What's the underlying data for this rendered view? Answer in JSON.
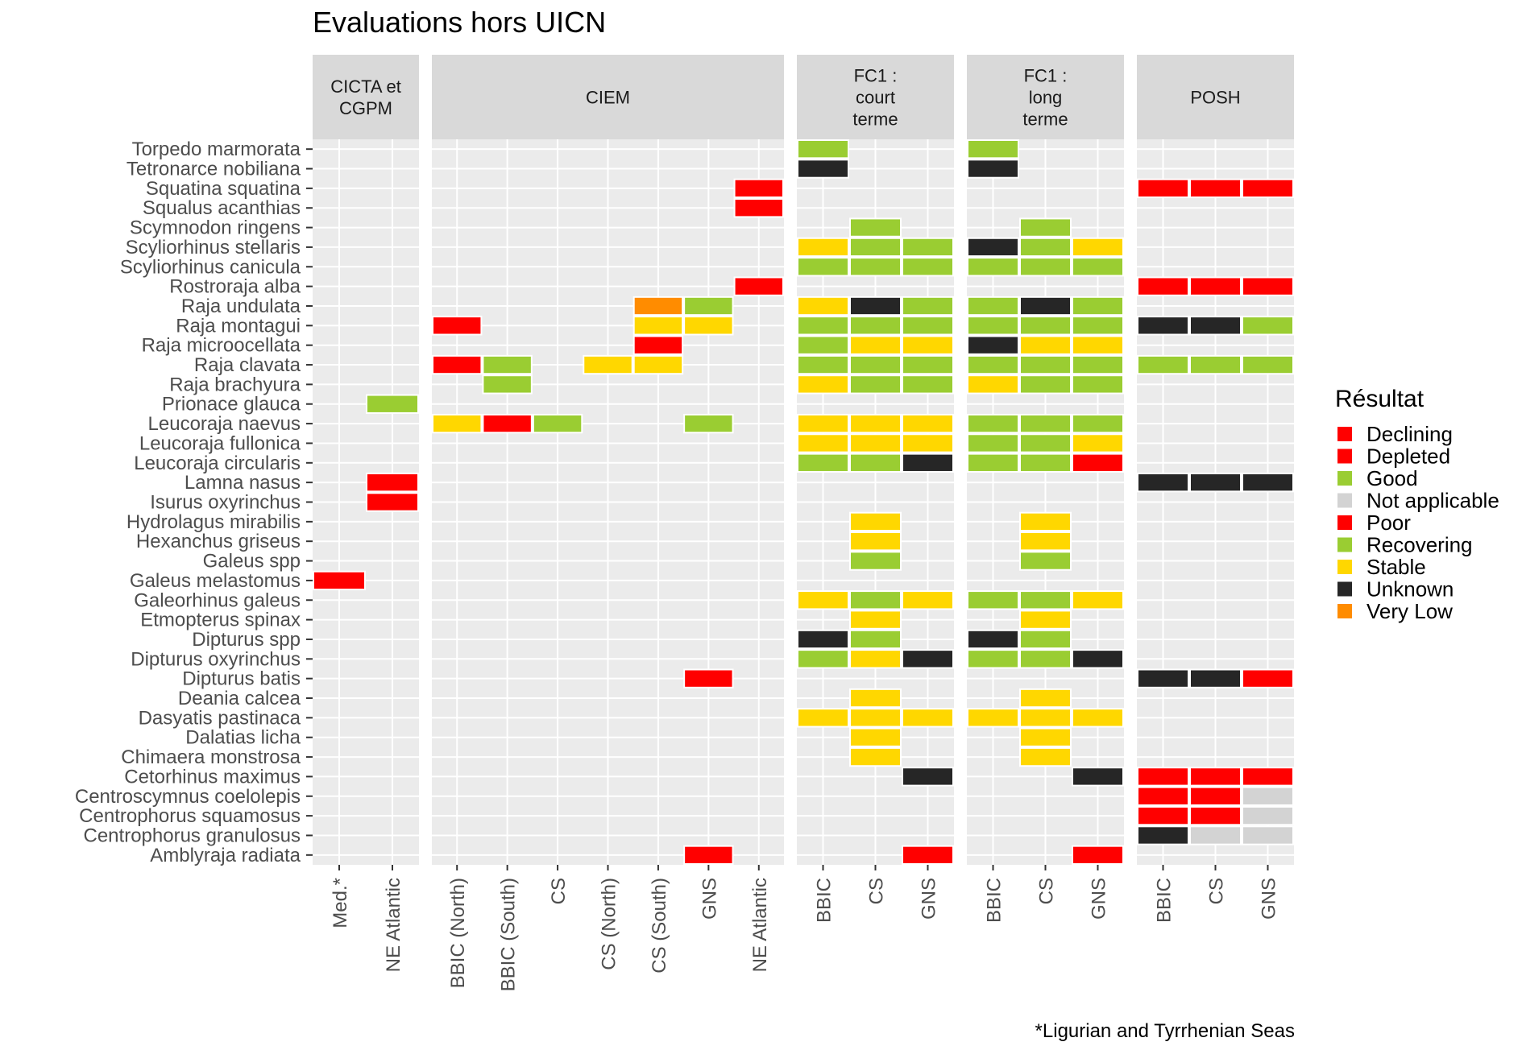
{
  "chart_data": {
    "type": "heatmap",
    "title": "Evaluations hors UICN",
    "caption": "*Ligurian and Tyrrhenian Seas",
    "legend": {
      "title": "Résultat",
      "placement": "right",
      "entries": [
        {
          "label": "Declining",
          "color": "#ff0000"
        },
        {
          "label": "Depleted",
          "color": "#ff0000"
        },
        {
          "label": "Good",
          "color": "#9acd32"
        },
        {
          "label": "Not applicable",
          "color": "#d3d3d3"
        },
        {
          "label": "Poor",
          "color": "#ff0000"
        },
        {
          "label": "Recovering",
          "color": "#9acd32"
        },
        {
          "label": "Stable",
          "color": "#ffd700"
        },
        {
          "label": "Unknown",
          "color": "#262626"
        },
        {
          "label": "Very Low",
          "color": "#ff8c00"
        }
      ]
    },
    "species": [
      "Torpedo marmorata",
      "Tetronarce nobiliana",
      "Squatina squatina",
      "Squalus acanthias",
      "Scymnodon ringens",
      "Scyliorhinus stellaris",
      "Scyliorhinus canicula",
      "Rostroraja alba",
      "Raja undulata",
      "Raja montagui",
      "Raja microocellata",
      "Raja clavata",
      "Raja brachyura",
      "Prionace glauca",
      "Leucoraja naevus",
      "Leucoraja fullonica",
      "Leucoraja circularis",
      "Lamna nasus",
      "Isurus oxyrinchus",
      "Hydrolagus mirabilis",
      "Hexanchus griseus",
      "Galeus spp",
      "Galeus melastomus",
      "Galeorhinus galeus",
      "Etmopterus spinax",
      "Dipturus spp",
      "Dipturus oxyrinchus",
      "Dipturus batis",
      "Deania calcea",
      "Dasyatis pastinaca",
      "Dalatias licha",
      "Chimaera monstrosa",
      "Cetorhinus maximus",
      "Centroscymnus coelolepis",
      "Centrophorus squamosus",
      "Centrophorus granulosus",
      "Amblyraja radiata"
    ],
    "panels": [
      {
        "strip": [
          "CICTA et",
          "CGPM"
        ],
        "columns": [
          "Med.*",
          "NE Atlantic"
        ],
        "cells": [
          [
            "Prionace glauca",
            1,
            "Good"
          ],
          [
            "Lamna nasus",
            1,
            "Depleted"
          ],
          [
            "Isurus oxyrinchus",
            1,
            "Depleted"
          ],
          [
            "Galeus melastomus",
            0,
            "Declining"
          ]
        ]
      },
      {
        "strip": [
          "CIEM"
        ],
        "columns": [
          "BBIC (North)",
          "BBIC (South)",
          "CS",
          "CS (North)",
          "CS (South)",
          "GNS",
          "NE Atlantic"
        ],
        "cells": [
          [
            "Squatina squatina",
            6,
            "Depleted"
          ],
          [
            "Squalus acanthias",
            6,
            "Depleted"
          ],
          [
            "Rostroraja alba",
            6,
            "Depleted"
          ],
          [
            "Raja undulata",
            4,
            "Very Low"
          ],
          [
            "Raja undulata",
            5,
            "Good"
          ],
          [
            "Raja montagui",
            0,
            "Declining"
          ],
          [
            "Raja montagui",
            4,
            "Stable"
          ],
          [
            "Raja montagui",
            5,
            "Stable"
          ],
          [
            "Raja microocellata",
            4,
            "Declining"
          ],
          [
            "Raja clavata",
            0,
            "Declining"
          ],
          [
            "Raja clavata",
            1,
            "Good"
          ],
          [
            "Raja clavata",
            3,
            "Stable"
          ],
          [
            "Raja clavata",
            4,
            "Stable"
          ],
          [
            "Raja brachyura",
            1,
            "Good"
          ],
          [
            "Leucoraja naevus",
            0,
            "Stable"
          ],
          [
            "Leucoraja naevus",
            1,
            "Declining"
          ],
          [
            "Leucoraja naevus",
            2,
            "Good"
          ],
          [
            "Leucoraja naevus",
            5,
            "Good"
          ],
          [
            "Dipturus batis",
            5,
            "Depleted"
          ],
          [
            "Amblyraja radiata",
            5,
            "Depleted"
          ]
        ]
      },
      {
        "strip": [
          "FC1 :",
          "court",
          "terme"
        ],
        "columns": [
          "BBIC",
          "CS",
          "GNS"
        ],
        "cells": [
          [
            "Torpedo marmorata",
            0,
            "Good"
          ],
          [
            "Tetronarce nobiliana",
            0,
            "Unknown"
          ],
          [
            "Scymnodon ringens",
            1,
            "Good"
          ],
          [
            "Scyliorhinus stellaris",
            0,
            "Stable"
          ],
          [
            "Scyliorhinus stellaris",
            1,
            "Good"
          ],
          [
            "Scyliorhinus stellaris",
            2,
            "Good"
          ],
          [
            "Scyliorhinus canicula",
            0,
            "Good"
          ],
          [
            "Scyliorhinus canicula",
            1,
            "Good"
          ],
          [
            "Scyliorhinus canicula",
            2,
            "Good"
          ],
          [
            "Raja undulata",
            0,
            "Stable"
          ],
          [
            "Raja undulata",
            1,
            "Unknown"
          ],
          [
            "Raja undulata",
            2,
            "Good"
          ],
          [
            "Raja montagui",
            0,
            "Good"
          ],
          [
            "Raja montagui",
            1,
            "Good"
          ],
          [
            "Raja montagui",
            2,
            "Good"
          ],
          [
            "Raja microocellata",
            0,
            "Good"
          ],
          [
            "Raja microocellata",
            1,
            "Stable"
          ],
          [
            "Raja microocellata",
            2,
            "Stable"
          ],
          [
            "Raja clavata",
            0,
            "Good"
          ],
          [
            "Raja clavata",
            1,
            "Good"
          ],
          [
            "Raja clavata",
            2,
            "Good"
          ],
          [
            "Raja brachyura",
            0,
            "Stable"
          ],
          [
            "Raja brachyura",
            1,
            "Good"
          ],
          [
            "Raja brachyura",
            2,
            "Good"
          ],
          [
            "Leucoraja naevus",
            0,
            "Stable"
          ],
          [
            "Leucoraja naevus",
            1,
            "Stable"
          ],
          [
            "Leucoraja naevus",
            2,
            "Stable"
          ],
          [
            "Leucoraja fullonica",
            0,
            "Stable"
          ],
          [
            "Leucoraja fullonica",
            1,
            "Stable"
          ],
          [
            "Leucoraja fullonica",
            2,
            "Stable"
          ],
          [
            "Leucoraja circularis",
            0,
            "Good"
          ],
          [
            "Leucoraja circularis",
            1,
            "Good"
          ],
          [
            "Leucoraja circularis",
            2,
            "Unknown"
          ],
          [
            "Hydrolagus mirabilis",
            1,
            "Stable"
          ],
          [
            "Hexanchus griseus",
            1,
            "Stable"
          ],
          [
            "Galeus spp",
            1,
            "Good"
          ],
          [
            "Galeorhinus galeus",
            0,
            "Stable"
          ],
          [
            "Galeorhinus galeus",
            1,
            "Good"
          ],
          [
            "Galeorhinus galeus",
            2,
            "Stable"
          ],
          [
            "Etmopterus spinax",
            1,
            "Stable"
          ],
          [
            "Dipturus spp",
            0,
            "Unknown"
          ],
          [
            "Dipturus spp",
            1,
            "Good"
          ],
          [
            "Dipturus oxyrinchus",
            0,
            "Good"
          ],
          [
            "Dipturus oxyrinchus",
            1,
            "Stable"
          ],
          [
            "Dipturus oxyrinchus",
            2,
            "Unknown"
          ],
          [
            "Deania calcea",
            1,
            "Stable"
          ],
          [
            "Dasyatis pastinaca",
            0,
            "Stable"
          ],
          [
            "Dasyatis pastinaca",
            1,
            "Stable"
          ],
          [
            "Dasyatis pastinaca",
            2,
            "Stable"
          ],
          [
            "Dalatias licha",
            1,
            "Stable"
          ],
          [
            "Chimaera monstrosa",
            1,
            "Stable"
          ],
          [
            "Cetorhinus maximus",
            2,
            "Unknown"
          ],
          [
            "Amblyraja radiata",
            2,
            "Poor"
          ]
        ]
      },
      {
        "strip": [
          "FC1 :",
          "long",
          "terme"
        ],
        "columns": [
          "BBIC",
          "CS",
          "GNS"
        ],
        "cells": [
          [
            "Torpedo marmorata",
            0,
            "Good"
          ],
          [
            "Tetronarce nobiliana",
            0,
            "Unknown"
          ],
          [
            "Scymnodon ringens",
            1,
            "Good"
          ],
          [
            "Scyliorhinus stellaris",
            0,
            "Unknown"
          ],
          [
            "Scyliorhinus stellaris",
            1,
            "Good"
          ],
          [
            "Scyliorhinus stellaris",
            2,
            "Stable"
          ],
          [
            "Scyliorhinus canicula",
            0,
            "Good"
          ],
          [
            "Scyliorhinus canicula",
            1,
            "Good"
          ],
          [
            "Scyliorhinus canicula",
            2,
            "Good"
          ],
          [
            "Raja undulata",
            0,
            "Good"
          ],
          [
            "Raja undulata",
            1,
            "Unknown"
          ],
          [
            "Raja undulata",
            2,
            "Good"
          ],
          [
            "Raja montagui",
            0,
            "Good"
          ],
          [
            "Raja montagui",
            1,
            "Good"
          ],
          [
            "Raja montagui",
            2,
            "Good"
          ],
          [
            "Raja microocellata",
            0,
            "Unknown"
          ],
          [
            "Raja microocellata",
            1,
            "Stable"
          ],
          [
            "Raja microocellata",
            2,
            "Stable"
          ],
          [
            "Raja clavata",
            0,
            "Good"
          ],
          [
            "Raja clavata",
            1,
            "Good"
          ],
          [
            "Raja clavata",
            2,
            "Good"
          ],
          [
            "Raja brachyura",
            0,
            "Stable"
          ],
          [
            "Raja brachyura",
            1,
            "Good"
          ],
          [
            "Raja brachyura",
            2,
            "Good"
          ],
          [
            "Leucoraja naevus",
            0,
            "Good"
          ],
          [
            "Leucoraja naevus",
            1,
            "Good"
          ],
          [
            "Leucoraja naevus",
            2,
            "Good"
          ],
          [
            "Leucoraja fullonica",
            0,
            "Good"
          ],
          [
            "Leucoraja fullonica",
            1,
            "Good"
          ],
          [
            "Leucoraja fullonica",
            2,
            "Stable"
          ],
          [
            "Leucoraja circularis",
            0,
            "Good"
          ],
          [
            "Leucoraja circularis",
            1,
            "Good"
          ],
          [
            "Leucoraja circularis",
            2,
            "Poor"
          ],
          [
            "Hydrolagus mirabilis",
            1,
            "Stable"
          ],
          [
            "Hexanchus griseus",
            1,
            "Stable"
          ],
          [
            "Galeus spp",
            1,
            "Good"
          ],
          [
            "Galeorhinus galeus",
            0,
            "Good"
          ],
          [
            "Galeorhinus galeus",
            1,
            "Good"
          ],
          [
            "Galeorhinus galeus",
            2,
            "Stable"
          ],
          [
            "Etmopterus spinax",
            1,
            "Stable"
          ],
          [
            "Dipturus spp",
            0,
            "Unknown"
          ],
          [
            "Dipturus spp",
            1,
            "Good"
          ],
          [
            "Dipturus oxyrinchus",
            0,
            "Good"
          ],
          [
            "Dipturus oxyrinchus",
            1,
            "Good"
          ],
          [
            "Dipturus oxyrinchus",
            2,
            "Unknown"
          ],
          [
            "Deania calcea",
            1,
            "Stable"
          ],
          [
            "Dasyatis pastinaca",
            0,
            "Stable"
          ],
          [
            "Dasyatis pastinaca",
            1,
            "Stable"
          ],
          [
            "Dasyatis pastinaca",
            2,
            "Stable"
          ],
          [
            "Dalatias licha",
            1,
            "Stable"
          ],
          [
            "Chimaera monstrosa",
            1,
            "Stable"
          ],
          [
            "Cetorhinus maximus",
            2,
            "Unknown"
          ],
          [
            "Amblyraja radiata",
            2,
            "Poor"
          ]
        ]
      },
      {
        "strip": [
          "POSH"
        ],
        "columns": [
          "BBIC",
          "CS",
          "GNS"
        ],
        "cells": [
          [
            "Squatina squatina",
            0,
            "Declining"
          ],
          [
            "Squatina squatina",
            1,
            "Declining"
          ],
          [
            "Squatina squatina",
            2,
            "Declining"
          ],
          [
            "Rostroraja alba",
            0,
            "Declining"
          ],
          [
            "Rostroraja alba",
            1,
            "Declining"
          ],
          [
            "Rostroraja alba",
            2,
            "Declining"
          ],
          [
            "Raja montagui",
            0,
            "Unknown"
          ],
          [
            "Raja montagui",
            1,
            "Unknown"
          ],
          [
            "Raja montagui",
            2,
            "Recovering"
          ],
          [
            "Raja clavata",
            0,
            "Recovering"
          ],
          [
            "Raja clavata",
            1,
            "Recovering"
          ],
          [
            "Raja clavata",
            2,
            "Recovering"
          ],
          [
            "Lamna nasus",
            0,
            "Unknown"
          ],
          [
            "Lamna nasus",
            1,
            "Unknown"
          ],
          [
            "Lamna nasus",
            2,
            "Unknown"
          ],
          [
            "Dipturus batis",
            0,
            "Unknown"
          ],
          [
            "Dipturus batis",
            1,
            "Unknown"
          ],
          [
            "Dipturus batis",
            2,
            "Declining"
          ],
          [
            "Cetorhinus maximus",
            0,
            "Declining"
          ],
          [
            "Cetorhinus maximus",
            1,
            "Declining"
          ],
          [
            "Cetorhinus maximus",
            2,
            "Declining"
          ],
          [
            "Centroscymnus coelolepis",
            0,
            "Declining"
          ],
          [
            "Centroscymnus coelolepis",
            1,
            "Declining"
          ],
          [
            "Centroscymnus coelolepis",
            2,
            "Not applicable"
          ],
          [
            "Centrophorus squamosus",
            0,
            "Declining"
          ],
          [
            "Centrophorus squamosus",
            1,
            "Declining"
          ],
          [
            "Centrophorus squamosus",
            2,
            "Not applicable"
          ],
          [
            "Centrophorus granulosus",
            0,
            "Unknown"
          ],
          [
            "Centrophorus granulosus",
            1,
            "Not applicable"
          ],
          [
            "Centrophorus granulosus",
            2,
            "Not applicable"
          ]
        ]
      }
    ]
  }
}
